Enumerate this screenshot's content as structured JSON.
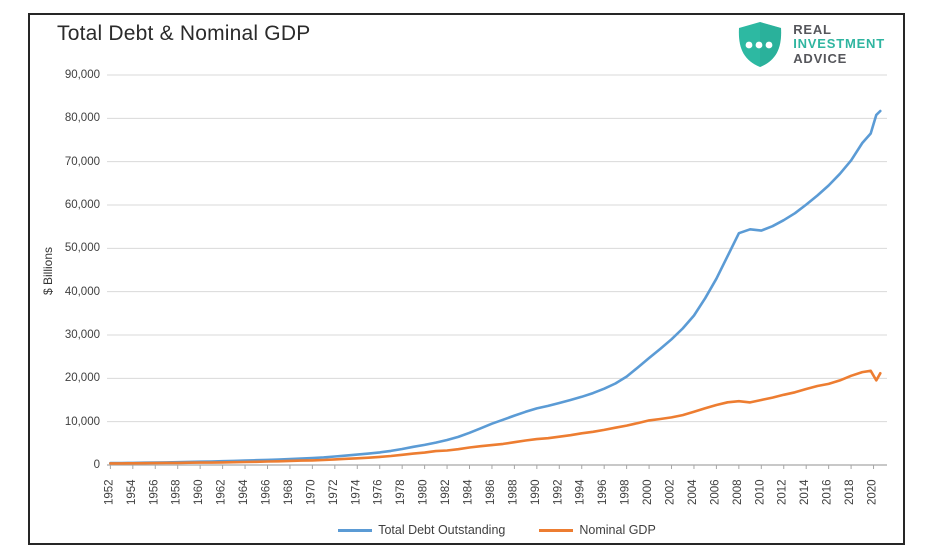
{
  "header": {
    "title": "Total Debt & Nominal GDP"
  },
  "logo": {
    "line1": "REAL",
    "line2": "INVESTMENT",
    "line3": "ADVICE",
    "shield_color": "#2db9a2",
    "shield_shade_color": "#27a892",
    "dot_color": "#ffffff",
    "text_dark_color": "#55565b",
    "text_teal_color": "#2fb5a0"
  },
  "chart_data": {
    "type": "line",
    "title": "Total Debt & Nominal GDP",
    "xlabel": "",
    "ylabel": "$ Billions",
    "ylim": [
      0,
      90000
    ],
    "x_range": [
      1951.7,
      2021.2
    ],
    "grid": true,
    "legend_position": "bottom",
    "gridline_color": "#d9d9d9",
    "axis_color": "#a6a6a6",
    "tick_text_color": "#404040",
    "y_tick_labels": [
      "0",
      "10,000",
      "20,000",
      "30,000",
      "40,000",
      "50,000",
      "60,000",
      "70,000",
      "80,000",
      "90,000"
    ],
    "y_tick_step": 10000,
    "x_tick_labels": [
      "1952",
      "1954",
      "1956",
      "1958",
      "1960",
      "1962",
      "1964",
      "1966",
      "1968",
      "1970",
      "1972",
      "1974",
      "1976",
      "1978",
      "1980",
      "1982",
      "1984",
      "1986",
      "1988",
      "1990",
      "1992",
      "1994",
      "1996",
      "1998",
      "2000",
      "2002",
      "2004",
      "2006",
      "2008",
      "2010",
      "2012",
      "2014",
      "2016",
      "2018",
      "2020"
    ],
    "x": [
      1952,
      1953,
      1954,
      1955,
      1956,
      1957,
      1958,
      1959,
      1960,
      1961,
      1962,
      1963,
      1964,
      1965,
      1966,
      1967,
      1968,
      1969,
      1970,
      1971,
      1972,
      1973,
      1974,
      1975,
      1976,
      1977,
      1978,
      1979,
      1980,
      1981,
      1982,
      1983,
      1984,
      1985,
      1986,
      1987,
      1988,
      1989,
      1990,
      1991,
      1992,
      1993,
      1994,
      1995,
      1996,
      1997,
      1998,
      1999,
      2000,
      2001,
      2002,
      2003,
      2004,
      2005,
      2006,
      2007,
      2008,
      2009,
      2010,
      2011,
      2012,
      2013,
      2014,
      2015,
      2016,
      2017,
      2018,
      2019,
      2019.75,
      2020.25,
      2020.6
    ],
    "series": [
      {
        "name": "Total Debt Outstanding",
        "color": "#5b9bd5",
        "values": [
          430,
          460,
          490,
          535,
          575,
          610,
          655,
          710,
          760,
          815,
          880,
          950,
          1025,
          1105,
          1185,
          1275,
          1385,
          1495,
          1605,
          1760,
          1955,
          2170,
          2390,
          2620,
          2900,
          3250,
          3700,
          4190,
          4650,
          5170,
          5760,
          6480,
          7430,
          8480,
          9520,
          10450,
          11400,
          12280,
          13050,
          13650,
          14300,
          15000,
          15750,
          16600,
          17600,
          18800,
          20400,
          22500,
          24700,
          26800,
          29000,
          31500,
          34500,
          38500,
          43000,
          48200,
          53500,
          54400,
          54100,
          55100,
          56500,
          58100,
          60100,
          62200,
          64500,
          67200,
          70300,
          74300,
          76500,
          80800,
          81700
        ]
      },
      {
        "name": "Nominal GDP",
        "color": "#ed7d31",
        "values": [
          358,
          380,
          391,
          426,
          450,
          474,
          482,
          522,
          543,
          563,
          605,
          638,
          685,
          742,
          813,
          860,
          941,
          1019,
          1073,
          1165,
          1282,
          1428,
          1549,
          1689,
          1878,
          2086,
          2357,
          2632,
          2863,
          3211,
          3345,
          3638,
          4041,
          4347,
          4590,
          4870,
          5253,
          5658,
          5980,
          6174,
          6539,
          6879,
          7309,
          7664,
          8100,
          8609,
          9089,
          9661,
          10285,
          10622,
          10978,
          11511,
          12275,
          13094,
          13856,
          14478,
          14713,
          14449,
          14992,
          15543,
          16197,
          16785,
          17527,
          18225,
          18715,
          19519,
          20580,
          21433,
          21730,
          19520,
          21170
        ]
      }
    ]
  }
}
